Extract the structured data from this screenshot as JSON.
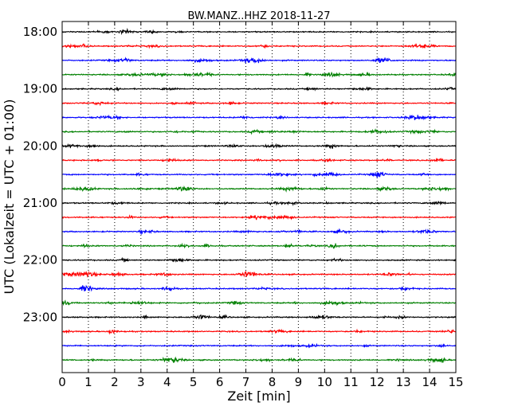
{
  "chart_data": {
    "type": "line",
    "title": "BW.MANZ..HHZ 2018-11-27",
    "xlabel": "Zeit  [min]",
    "ylabel": "UTC (Lokalzeit = UTC + 01:00)",
    "xlim": [
      0,
      15
    ],
    "x_ticks": [
      "0",
      "1",
      "2",
      "3",
      "4",
      "5",
      "6",
      "7",
      "8",
      "9",
      "10",
      "11",
      "12",
      "13",
      "14",
      "15"
    ],
    "y_ticks": [
      "18:00",
      "19:00",
      "20:00",
      "21:00",
      "22:00",
      "23:00"
    ],
    "trace_interval_min": 15,
    "trace_start": "18:00",
    "trace_end": "23:45",
    "trace_colors": [
      "#000000",
      "#ff0000",
      "#0000ff",
      "#008000"
    ],
    "grid": "vertical dotted at each minute",
    "traces": [
      {
        "start": "18:00",
        "color": "#000000"
      },
      {
        "start": "18:15",
        "color": "#ff0000"
      },
      {
        "start": "18:30",
        "color": "#0000ff"
      },
      {
        "start": "18:45",
        "color": "#008000"
      },
      {
        "start": "19:00",
        "color": "#000000"
      },
      {
        "start": "19:15",
        "color": "#ff0000"
      },
      {
        "start": "19:30",
        "color": "#0000ff"
      },
      {
        "start": "19:45",
        "color": "#008000"
      },
      {
        "start": "20:00",
        "color": "#000000"
      },
      {
        "start": "20:15",
        "color": "#ff0000"
      },
      {
        "start": "20:30",
        "color": "#0000ff"
      },
      {
        "start": "20:45",
        "color": "#008000"
      },
      {
        "start": "21:00",
        "color": "#000000"
      },
      {
        "start": "21:15",
        "color": "#ff0000"
      },
      {
        "start": "21:30",
        "color": "#0000ff"
      },
      {
        "start": "21:45",
        "color": "#008000"
      },
      {
        "start": "22:00",
        "color": "#000000"
      },
      {
        "start": "22:15",
        "color": "#ff0000"
      },
      {
        "start": "22:30",
        "color": "#0000ff"
      },
      {
        "start": "22:45",
        "color": "#008000"
      },
      {
        "start": "23:00",
        "color": "#000000"
      },
      {
        "start": "23:15",
        "color": "#ff0000"
      },
      {
        "start": "23:30",
        "color": "#0000ff"
      },
      {
        "start": "23:45",
        "color": "#008000"
      }
    ]
  }
}
